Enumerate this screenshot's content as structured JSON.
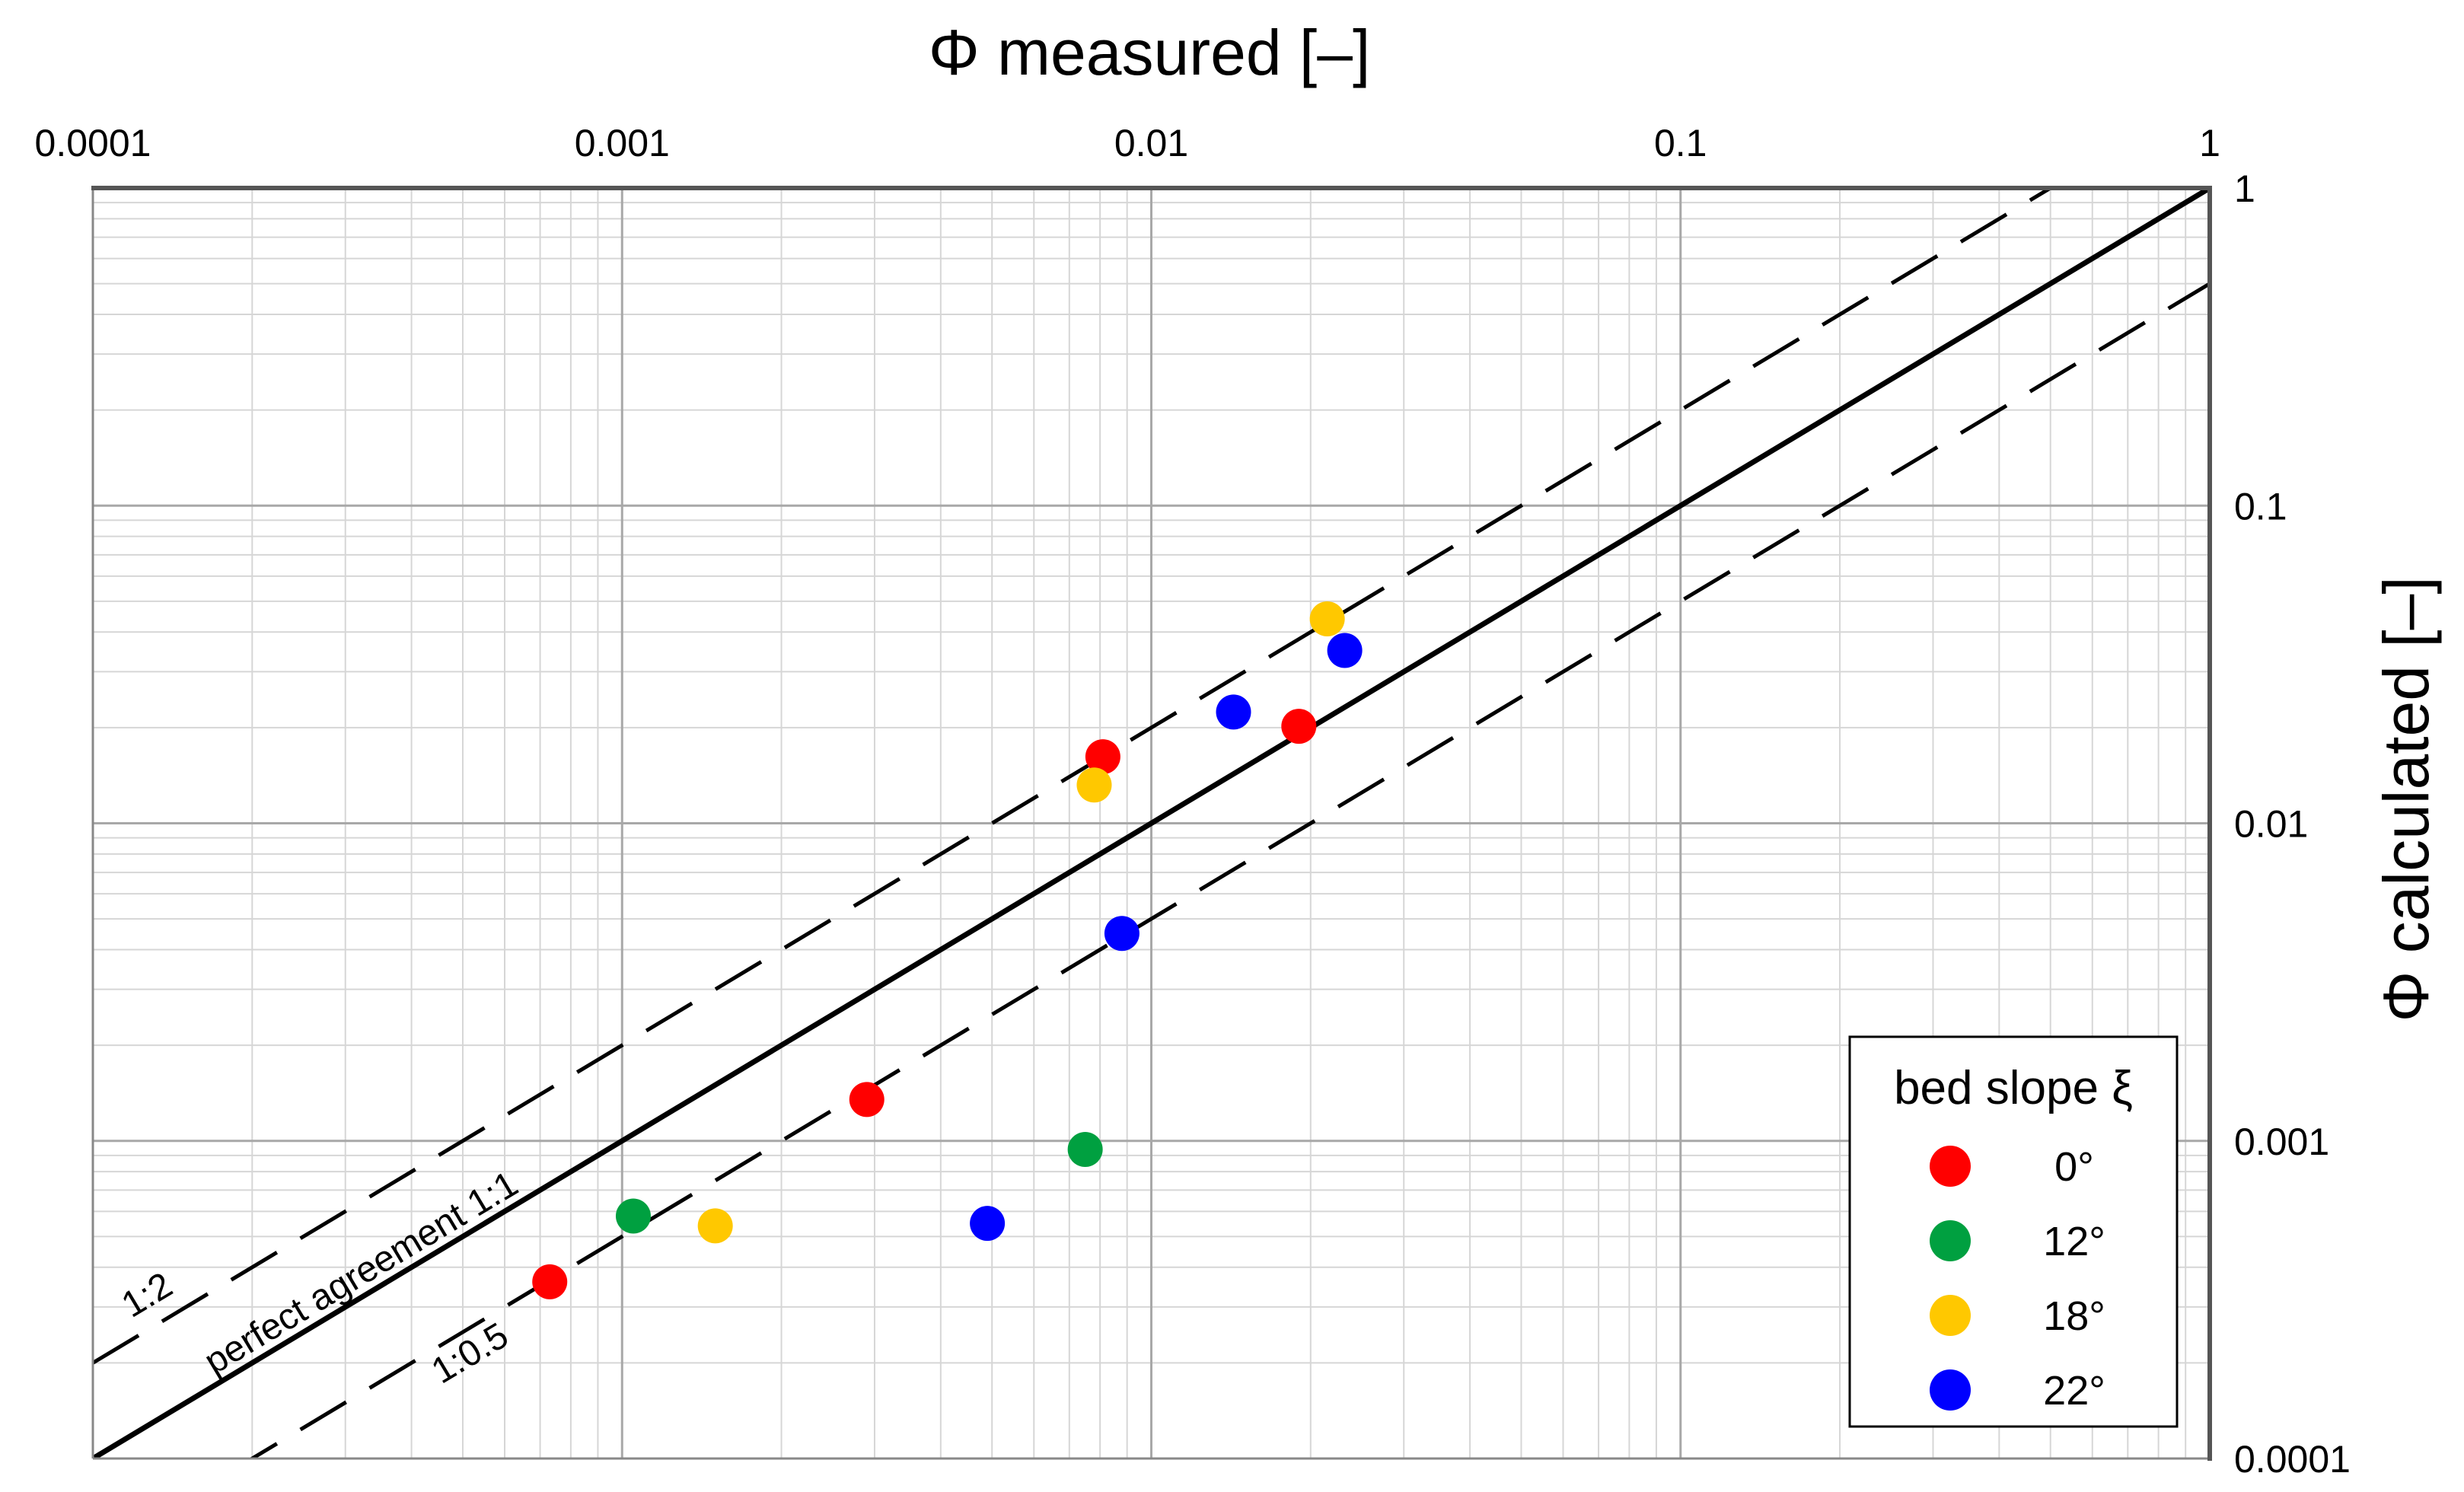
{
  "chart_data": {
    "type": "scatter",
    "title": "",
    "xlabel": "Φ measured [–]",
    "ylabel": "Φ calculated [–]",
    "x_scale": "log",
    "y_scale": "log",
    "xlim": [
      0.0001,
      1
    ],
    "ylim": [
      0.0001,
      1
    ],
    "x_ticks": [
      "0.0001",
      "0.001",
      "0.01",
      "0.1",
      "1"
    ],
    "y_ticks": [
      "0.0001",
      "0.001",
      "0.01",
      "0.1",
      "1"
    ],
    "x_axis_position": "top",
    "y_axis_position": "right",
    "grid": true,
    "legend": {
      "title": "bed slope ξ",
      "position": "bottom-right"
    },
    "series": [
      {
        "name": "0°",
        "color": "#ff0000",
        "points": [
          [
            0.00073,
            0.00036
          ],
          [
            0.0029,
            0.00135
          ],
          [
            0.0081,
            0.0162
          ],
          [
            0.019,
            0.0202
          ]
        ]
      },
      {
        "name": "12°",
        "color": "#00a040",
        "points": [
          [
            0.00105,
            0.00058
          ],
          [
            0.0075,
            0.00094
          ]
        ]
      },
      {
        "name": "18°",
        "color": "#ffc800",
        "points": [
          [
            0.0015,
            0.00054
          ],
          [
            0.0078,
            0.0132
          ],
          [
            0.0215,
            0.044
          ]
        ]
      },
      {
        "name": "22°",
        "color": "#0000ff",
        "points": [
          [
            0.0049,
            0.00055
          ],
          [
            0.0088,
            0.0045
          ],
          [
            0.0143,
            0.0224
          ],
          [
            0.0232,
            0.035
          ]
        ]
      }
    ],
    "reference_lines": [
      {
        "label": "perfect agreement 1:1",
        "ratio": 1,
        "style": "solid"
      },
      {
        "label": "1:2",
        "ratio": 2,
        "style": "dashed"
      },
      {
        "label": "1:0.5",
        "ratio": 0.5,
        "style": "dashed"
      }
    ]
  }
}
